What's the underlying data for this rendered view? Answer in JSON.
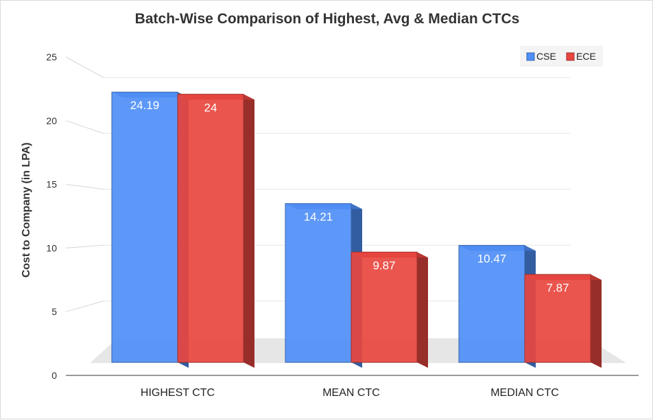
{
  "chart_data": {
    "type": "bar",
    "title": "Batch-Wise Comparison of Highest, Avg & Median CTCs",
    "ylabel": "Cost to Company (in LPA)",
    "xlabel": "",
    "categories": [
      "HIGHEST CTC",
      "MEAN CTC",
      "MEDIAN CTC"
    ],
    "series": [
      {
        "name": "CSE",
        "values": [
          24.19,
          14.21,
          10.47
        ],
        "labels": [
          "24.19",
          "14.21",
          "10.47"
        ],
        "color": "#4f8ff7"
      },
      {
        "name": "ECE",
        "values": [
          24,
          9.87,
          7.87
        ],
        "labels": [
          "24",
          "9.87",
          "7.87"
        ],
        "color": "#e8463f"
      }
    ],
    "ylim": [
      0,
      25
    ],
    "yticks": [
      "0",
      "5",
      "10",
      "15",
      "20",
      "25"
    ],
    "grid": true,
    "legend_position": "top-right",
    "style": "3d"
  }
}
